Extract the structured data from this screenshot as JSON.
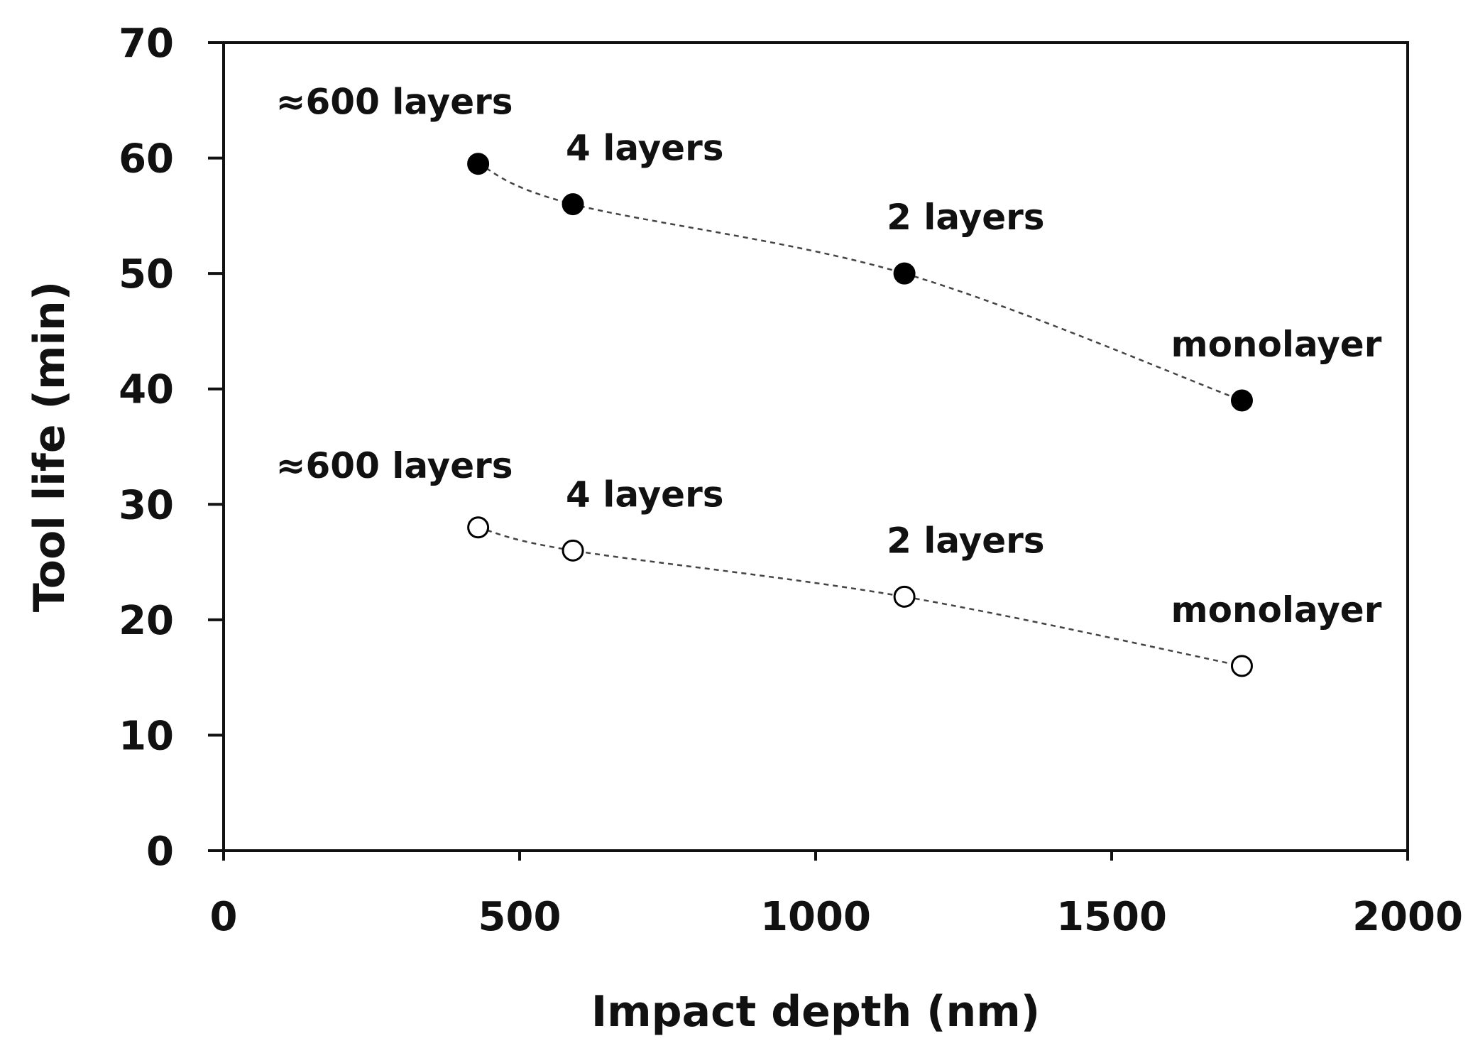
{
  "chart_data": {
    "type": "scatter",
    "title": "",
    "xlabel": "Impact depth (nm)",
    "ylabel": "Tool life (min)",
    "xlim": [
      0,
      2000
    ],
    "ylim": [
      0,
      70
    ],
    "xticks": [
      0,
      500,
      1000,
      1500,
      2000
    ],
    "yticks": [
      0,
      10,
      20,
      30,
      40,
      50,
      60,
      70
    ],
    "grid": false,
    "legend": "none",
    "series": [
      {
        "name": "upper",
        "marker": "filled-circle",
        "line": "dashed",
        "color": "#000000",
        "points": [
          {
            "x": 430,
            "y": 59.5,
            "label": "≈600 layers"
          },
          {
            "x": 590,
            "y": 56,
            "label": "4 layers"
          },
          {
            "x": 1150,
            "y": 50,
            "label": "2 layers"
          },
          {
            "x": 1720,
            "y": 39,
            "label": "monolayer"
          }
        ]
      },
      {
        "name": "lower",
        "marker": "open-circle",
        "line": "dashed",
        "color": "#000000",
        "points": [
          {
            "x": 430,
            "y": 28,
            "label": "≈600 layers"
          },
          {
            "x": 590,
            "y": 26,
            "label": "4 layers"
          },
          {
            "x": 1150,
            "y": 22,
            "label": "2 layers"
          },
          {
            "x": 1720,
            "y": 16,
            "label": "monolayer"
          }
        ]
      }
    ]
  }
}
